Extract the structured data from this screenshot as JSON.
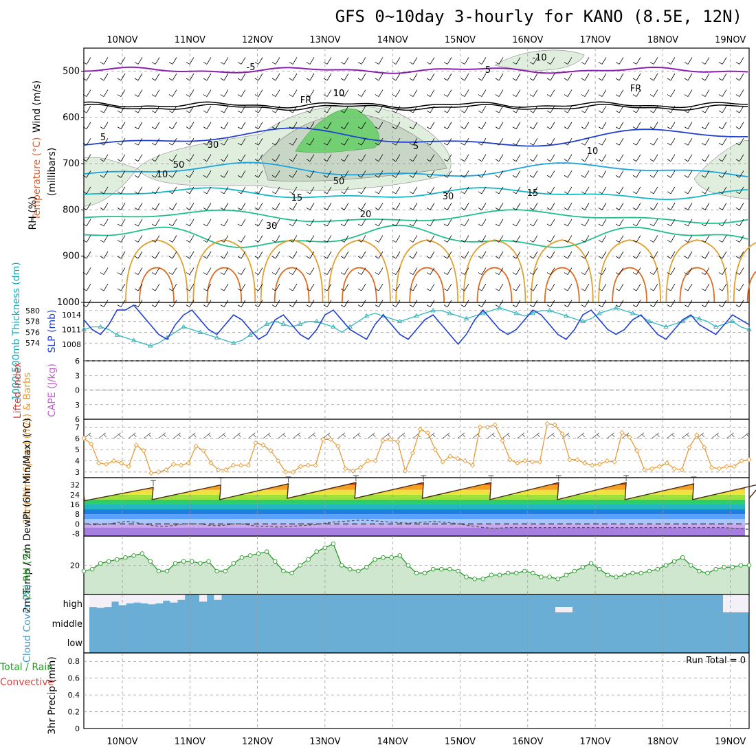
{
  "title": "GFS 0~10day 3-hourly for KANO (8.5E, 12N)",
  "colors": {
    "grid": "#9a9a9a",
    "purple": "#8a1fb0",
    "black": "#000000",
    "blue": "#1f3fd0",
    "lightblue": "#1aa3e0",
    "cyan": "#11b8c8",
    "teal": "#1fbf8a",
    "orange": "#e0a030",
    "darkorange": "#e06a20",
    "magenta": "#d0187a",
    "slp": "#2040d0",
    "thick": "#30b8c0",
    "wind": "#e89a38",
    "rh": "#2a9a2a",
    "cloud": "#6aaed6",
    "rhfill": "#cfe6cf",
    "li_red": "#e04040",
    "cape_purple": "#c060d0"
  },
  "chart_data": [
    {
      "id": "upper-air",
      "type": "heatmap",
      "title": "GFS 0~10day 3-hourly for KANO (8.5E, 12N)",
      "x_ticks": [
        "10NOV",
        "11NOV",
        "12NOV",
        "13NOV",
        "14NOV",
        "15NOV",
        "16NOV",
        "17NOV",
        "18NOV",
        "19NOV"
      ],
      "y_ticks": [
        500,
        600,
        700,
        800,
        900,
        1000
      ],
      "ylim": [
        450,
        1000
      ],
      "ylabel": "(millibars)",
      "labels": {
        "wind": "Wind (m/s)",
        "temp": "Temperature (°C)",
        "rh": "RH (%)"
      },
      "contour_labels": [
        "-5",
        "5",
        "-10",
        "FR",
        "FR",
        "5",
        "5",
        "10",
        "10",
        "15",
        "15",
        "20",
        "10",
        "10",
        "50",
        "50",
        "30",
        "30",
        "30"
      ]
    },
    {
      "id": "slp-thickness",
      "type": "line",
      "left_axis": {
        "label": "1000-500mb Thickness (dm)",
        "ticks": [
          574,
          576,
          578,
          580
        ]
      },
      "right_axis": {
        "label": "SLP (mb)",
        "ticks": [
          1008,
          1011,
          1014
        ]
      },
      "slp": [
        1013,
        1011,
        1010,
        1012,
        1015,
        1015,
        1016,
        1014,
        1012,
        1010,
        1009,
        1012,
        1014,
        1015,
        1013,
        1011,
        1010,
        1012,
        1014,
        1013,
        1011,
        1009,
        1010,
        1013,
        1014,
        1012,
        1010,
        1009,
        1011,
        1014,
        1015,
        1013,
        1011,
        1010,
        1009,
        1012,
        1014,
        1012,
        1010,
        1009,
        1011,
        1013,
        1014,
        1012,
        1010,
        1008,
        1010,
        1013,
        1015,
        1013,
        1011,
        1010,
        1011,
        1013,
        1015,
        1014,
        1012,
        1010,
        1009,
        1011,
        1014,
        1015,
        1013,
        1011,
        1010,
        1011,
        1013,
        1014,
        1012,
        1010,
        1009,
        1011,
        1013,
        1014,
        1012,
        1011,
        1010,
        1012,
        1014,
        1013,
        1012
      ],
      "thickness": [
        576.5,
        577,
        577,
        576.5,
        575.5,
        575,
        574.5,
        574,
        573.5,
        574,
        575,
        576,
        577,
        576.5,
        576,
        575.5,
        575,
        574.5,
        574,
        574.5,
        575.5,
        576.5,
        577.5,
        578,
        577.5,
        577,
        577.5,
        578,
        578,
        577.5,
        577,
        576,
        577,
        578,
        579,
        579.5,
        579,
        578.5,
        578,
        578.5,
        579,
        579.5,
        580,
        580,
        579.5,
        579,
        578.5,
        579,
        579.5,
        580,
        580.5,
        580,
        579.5,
        579,
        579.5,
        580,
        580,
        579.5,
        579,
        578.5,
        578,
        578.5,
        579.5,
        580,
        580.5,
        580,
        579.5,
        579,
        578,
        577.5,
        577,
        577.5,
        578,
        579,
        578.5,
        578,
        577,
        577.5,
        578,
        577,
        576.5
      ]
    },
    {
      "id": "li-cape",
      "type": "line",
      "left_axis": {
        "label": "Lifted Index",
        "ticks": [
          -6,
          -3,
          0,
          3,
          6
        ]
      },
      "right_label": "CAPE (J/kg)",
      "ylim": [
        -6,
        6
      ],
      "zero_line": 0
    },
    {
      "id": "wind10m",
      "type": "line",
      "ylabel": "10m Wind Speed (m/s) & Barbs",
      "y_ticks": [
        3,
        4,
        5,
        6,
        7
      ],
      "ylim": [
        2.5,
        7.7
      ],
      "values": [
        6.0,
        5.5,
        3.8,
        3.7,
        4.0,
        3.8,
        3.5,
        5.4,
        4.9,
        2.9,
        3.0,
        3.2,
        3.7,
        3.6,
        3.8,
        5.3,
        4.9,
        3.8,
        3.2,
        3.2,
        3.6,
        3.6,
        3.6,
        5.6,
        5.4,
        4.9,
        4.0,
        3.0,
        3.0,
        3.5,
        3.6,
        3.6,
        5.9,
        5.9,
        5.3,
        3.3,
        3.1,
        3.4,
        4.0,
        4.0,
        5.8,
        5.9,
        5.7,
        3.1,
        4.7,
        6.8,
        6.5,
        5.0,
        3.9,
        4.4,
        4.2,
        4.0,
        3.6,
        7.0,
        7.0,
        7.2,
        5.8,
        4.1,
        3.8,
        4.0,
        3.9,
        3.9,
        7.3,
        7.2,
        6.4,
        4.1,
        4.1,
        3.8,
        3.6,
        3.7,
        4.0,
        3.9,
        6.5,
        6.1,
        4.9,
        3.2,
        3.3,
        3.5,
        3.8,
        3.3,
        3.2,
        5.2,
        6.3,
        5.2,
        3.4,
        3.3,
        3.5,
        3.5,
        4.0,
        4.1
      ]
    },
    {
      "id": "temp-dewpt",
      "type": "area",
      "ylabel": "2m Temp / 2m DewPt (6hr Min/Max) (°C)",
      "y_ticks": [
        -8,
        0,
        8,
        16,
        24,
        32
      ],
      "ylim": [
        -10,
        38
      ],
      "temp_max": [
        30,
        32,
        33,
        34,
        34,
        34,
        34,
        34,
        33,
        33
      ],
      "temp_min": [
        19,
        20,
        20,
        21,
        21,
        21,
        20,
        20,
        20,
        20
      ],
      "dewpt": [
        0,
        -0.5,
        -0.5,
        0,
        1,
        2,
        1.5,
        0,
        -1,
        -2,
        -2,
        -1,
        0,
        0,
        0,
        -1,
        -1.5,
        -1,
        0,
        0,
        -1,
        -2,
        -2,
        -2.5,
        -2.5,
        -2,
        -1.5,
        -1,
        -0.5,
        0.5,
        1.5,
        2,
        2.5,
        3,
        3,
        2.5,
        2,
        1.5,
        1,
        0.5,
        1,
        1.5,
        2,
        1.5,
        1,
        0,
        -1,
        -2,
        -3,
        -3.5,
        -3.5,
        -3,
        -3,
        -3,
        -3,
        -3,
        -3,
        -3,
        -3,
        -3,
        -3,
        -3,
        -3,
        -3,
        -3,
        -3,
        -3,
        -3,
        -3,
        -3,
        -3,
        -3,
        -3,
        -3,
        -3,
        -3,
        -3,
        -3,
        -3.5,
        -4,
        -4.5
      ]
    },
    {
      "id": "rh2m",
      "type": "area",
      "ylabel": "2m RH (%)",
      "y_ticks": [
        20
      ],
      "ylim": [
        5,
        35
      ],
      "values": [
        17,
        18,
        21,
        22,
        23,
        24,
        25,
        26,
        22,
        17,
        17,
        21,
        22,
        22,
        21,
        22,
        17,
        17,
        21,
        24,
        25,
        26,
        27,
        22,
        17,
        16,
        20,
        23,
        27,
        29,
        31,
        20,
        18,
        17,
        19,
        23,
        24,
        24,
        25,
        20,
        16,
        16,
        18,
        18,
        18,
        17,
        14,
        13,
        13,
        15,
        15,
        16,
        16,
        17,
        16,
        14,
        14,
        13,
        15,
        17,
        19,
        21,
        18,
        15,
        14,
        15,
        16,
        16,
        17,
        18,
        20,
        22,
        24,
        20,
        17,
        16,
        18,
        19,
        19,
        20,
        20
      ]
    },
    {
      "id": "cloud",
      "type": "bar",
      "ylabel": "Cloud Cover (%)",
      "levels": [
        "high",
        "middle",
        "low"
      ],
      "high": [
        70,
        75,
        70,
        40,
        60,
        50,
        45,
        50,
        55,
        50,
        35,
        45,
        30,
        0,
        0,
        40,
        0,
        30,
        0,
        0,
        0,
        0,
        0,
        0,
        0,
        0,
        0,
        0,
        0,
        0,
        0,
        0,
        0,
        0,
        0,
        0,
        0,
        0,
        0,
        0,
        0,
        0,
        0,
        0,
        0,
        0,
        0,
        0,
        0,
        0,
        0,
        0,
        0,
        0,
        0,
        0,
        0,
        0,
        0,
        0,
        0,
        0,
        0,
        0,
        0,
        0,
        0,
        0,
        0,
        0,
        0,
        0,
        0,
        0,
        0,
        0,
        0,
        0,
        0,
        0,
        0,
        0,
        0,
        0,
        0,
        0,
        0,
        0,
        0,
        0
      ]
    },
    {
      "id": "precip",
      "type": "bar",
      "ylabel": "3hr Precip (mm)",
      "left_labels": [
        "Total / Rain",
        "Convective"
      ],
      "y_ticks": [
        0,
        0.2,
        0.4,
        0.6,
        0.8
      ],
      "ylim": [
        0,
        0.9
      ],
      "values": [],
      "run_total": "Run Total = 0"
    }
  ]
}
